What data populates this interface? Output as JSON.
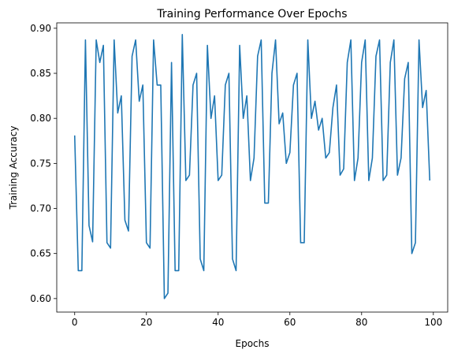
{
  "chart_data": {
    "type": "line",
    "title": "Training Performance Over Epochs",
    "xlabel": "Epochs",
    "ylabel": "Training Accuracy",
    "xlim": [
      -5,
      104
    ],
    "ylim": [
      0.585,
      0.906
    ],
    "xticks": [
      0,
      20,
      40,
      60,
      80,
      100
    ],
    "xtick_labels": [
      "0",
      "20",
      "40",
      "60",
      "80",
      "100"
    ],
    "yticks": [
      0.6,
      0.65,
      0.7,
      0.75,
      0.8,
      0.85,
      0.9
    ],
    "ytick_labels": [
      "0.60",
      "0.65",
      "0.70",
      "0.75",
      "0.80",
      "0.85",
      "0.90"
    ],
    "grid": false,
    "series": [
      {
        "color": "#1f77b4",
        "x": [
          0,
          1,
          2,
          3,
          4,
          5,
          6,
          7,
          8,
          9,
          10,
          11,
          12,
          13,
          14,
          15,
          16,
          17,
          18,
          19,
          20,
          21,
          22,
          23,
          24,
          25,
          26,
          27,
          28,
          29,
          30,
          31,
          32,
          33,
          34,
          35,
          36,
          37,
          38,
          39,
          40,
          41,
          42,
          43,
          44,
          45,
          46,
          47,
          48,
          49,
          50,
          51,
          52,
          53,
          54,
          55,
          56,
          57,
          58,
          59,
          60,
          61,
          62,
          63,
          64,
          65,
          66,
          67,
          68,
          69,
          70,
          71,
          72,
          73,
          74,
          75,
          76,
          77,
          78,
          79,
          80,
          81,
          82,
          83,
          84,
          85,
          86,
          87,
          88,
          89,
          90,
          91,
          92,
          93,
          94,
          95,
          96,
          97,
          98,
          99
        ],
        "values": [
          0.781,
          0.631,
          0.631,
          0.887,
          0.681,
          0.663,
          0.887,
          0.862,
          0.881,
          0.662,
          0.656,
          0.887,
          0.806,
          0.825,
          0.687,
          0.675,
          0.869,
          0.887,
          0.819,
          0.837,
          0.662,
          0.656,
          0.887,
          0.837,
          0.837,
          0.6,
          0.606,
          0.862,
          0.631,
          0.631,
          0.893,
          0.731,
          0.737,
          0.837,
          0.85,
          0.644,
          0.631,
          0.881,
          0.8,
          0.825,
          0.731,
          0.737,
          0.837,
          0.85,
          0.644,
          0.631,
          0.881,
          0.8,
          0.825,
          0.731,
          0.756,
          0.869,
          0.887,
          0.706,
          0.706,
          0.85,
          0.887,
          0.794,
          0.806,
          0.75,
          0.762,
          0.837,
          0.85,
          0.662,
          0.662,
          0.887,
          0.8,
          0.819,
          0.787,
          0.8,
          0.756,
          0.762,
          0.812,
          0.837,
          0.737,
          0.744,
          0.862,
          0.887,
          0.731,
          0.756,
          0.862,
          0.887,
          0.731,
          0.756,
          0.869,
          0.887,
          0.731,
          0.737,
          0.862,
          0.887,
          0.737,
          0.756,
          0.844,
          0.862,
          0.65,
          0.662,
          0.887,
          0.812,
          0.831,
          0.731
        ]
      }
    ]
  }
}
